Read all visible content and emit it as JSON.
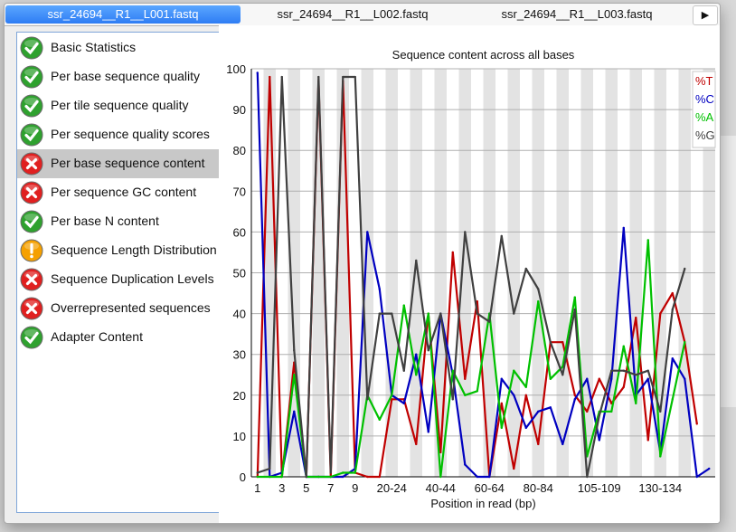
{
  "tabs": [
    {
      "label": "ssr_24694__R1__L001.fastq",
      "active": true
    },
    {
      "label": "ssr_24694__R1__L002.fastq",
      "active": false
    },
    {
      "label": "ssr_24694__R1__L003.fastq",
      "active": false
    }
  ],
  "tab_scroll_icon": "play-arrow-icon",
  "modules": [
    {
      "label": "Basic Statistics",
      "status": "pass"
    },
    {
      "label": "Per base sequence quality",
      "status": "pass"
    },
    {
      "label": "Per tile sequence quality",
      "status": "pass"
    },
    {
      "label": "Per sequence quality scores",
      "status": "pass"
    },
    {
      "label": "Per base sequence content",
      "status": "fail",
      "selected": true
    },
    {
      "label": "Per sequence GC content",
      "status": "fail"
    },
    {
      "label": "Per base N content",
      "status": "pass"
    },
    {
      "label": "Sequence Length Distribution",
      "status": "warn"
    },
    {
      "label": "Sequence Duplication Levels",
      "status": "fail"
    },
    {
      "label": "Overrepresented sequences",
      "status": "fail"
    },
    {
      "label": "Adapter Content",
      "status": "pass"
    }
  ],
  "status_colors": {
    "pass": "#2fa12f",
    "fail": "#e02020",
    "warn": "#f5a000"
  },
  "chart_data": {
    "type": "line",
    "title": "Sequence content across all bases",
    "xlabel": "Position in read (bp)",
    "ylabel": "",
    "ylim": [
      0,
      100
    ],
    "yticks": [
      0,
      10,
      20,
      30,
      40,
      50,
      60,
      70,
      80,
      90,
      100
    ],
    "x_categories": [
      "1",
      "2",
      "3",
      "4",
      "5",
      "6",
      "7",
      "8",
      "9",
      "10-14",
      "15-19",
      "20-24",
      "25-29",
      "30-34",
      "35-39",
      "40-44",
      "45-49",
      "50-54",
      "55-59",
      "60-64",
      "65-69",
      "70-74",
      "75-79",
      "80-84",
      "85-89",
      "90-94",
      "95-99",
      "100-104",
      "105-109",
      "110-114",
      "115-119",
      "120-124",
      "125-129",
      "130-134",
      "135-139",
      "140-144",
      "145-149",
      "150-151"
    ],
    "tick_labels": [
      "1",
      "3",
      "5",
      "7",
      "9",
      "20-24",
      "40-44",
      "60-64",
      "80-84",
      "105-109",
      "130-134"
    ],
    "grid": true,
    "legend_position": "top-right",
    "series": [
      {
        "name": "%T",
        "color": "#c00000",
        "values": [
          0,
          98,
          0,
          28,
          0,
          97,
          0,
          97,
          1,
          0,
          0,
          19,
          19,
          8,
          40,
          6,
          55,
          24,
          43,
          0,
          18,
          2,
          20,
          8,
          33,
          33,
          20,
          16,
          24,
          18,
          22,
          39,
          9,
          40,
          45,
          33,
          13,
          null
        ]
      },
      {
        "name": "%C",
        "color": "#0000c0",
        "values": [
          99,
          0,
          1,
          16,
          0,
          0,
          0,
          0,
          2,
          60,
          46,
          20,
          18,
          30,
          11,
          40,
          25,
          3,
          0,
          0,
          24,
          20,
          12,
          16,
          17,
          8,
          19,
          24,
          9,
          24,
          61,
          20,
          24,
          6,
          29,
          24,
          0,
          2
        ]
      },
      {
        "name": "%A",
        "color": "#00c000",
        "values": [
          0,
          0,
          0,
          25,
          0,
          0,
          0,
          1,
          1,
          20,
          14,
          20,
          42,
          25,
          40,
          0,
          26,
          20,
          21,
          40,
          12,
          26,
          22,
          43,
          24,
          27,
          44,
          5,
          16,
          16,
          32,
          18,
          58,
          5,
          19,
          33,
          null,
          null
        ]
      },
      {
        "name": "%G",
        "color": "#404040",
        "values": [
          1,
          2,
          98,
          31,
          0,
          98,
          1,
          98,
          98,
          19,
          40,
          40,
          26,
          53,
          31,
          40,
          19,
          60,
          40,
          38,
          59,
          40,
          51,
          46,
          33,
          25,
          41,
          0,
          15,
          26,
          26,
          25,
          26,
          16,
          41,
          51,
          null,
          null
        ]
      }
    ]
  }
}
